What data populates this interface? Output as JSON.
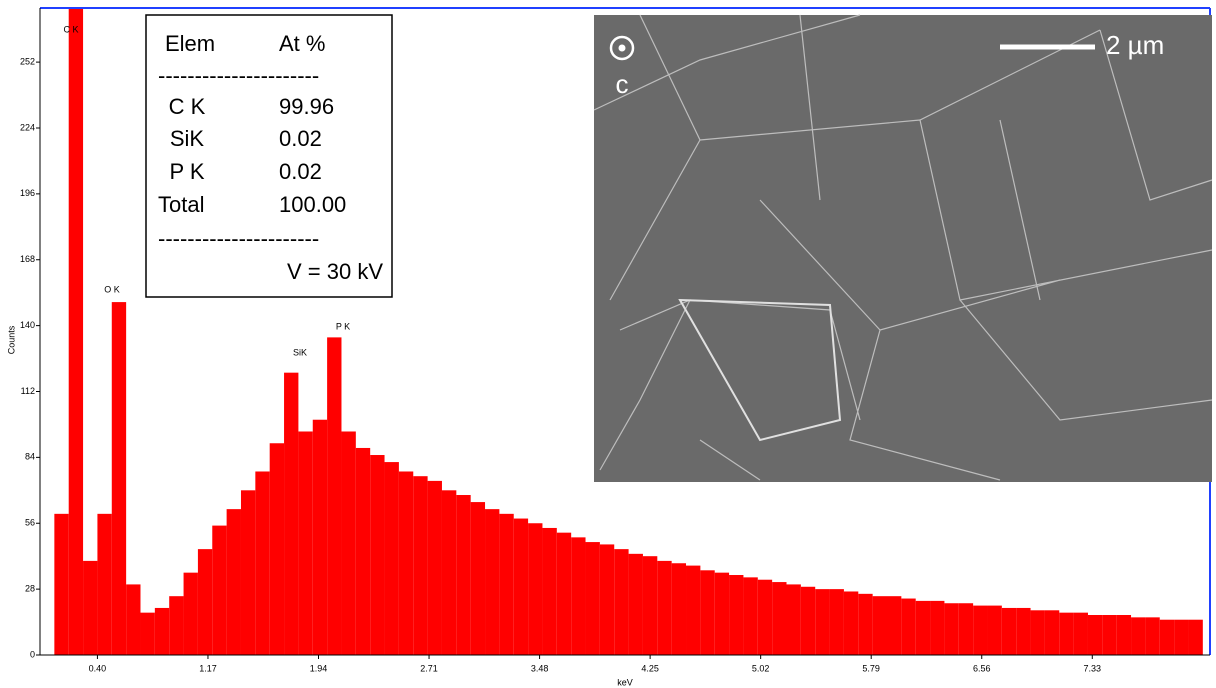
{
  "chart_data": {
    "type": "histogram",
    "x_label": "keV",
    "y_label": "Counts",
    "color": "#ff0000",
    "bins": [
      0.1,
      0.2,
      0.3,
      0.4,
      0.5,
      0.6,
      0.7,
      0.8,
      0.9,
      1.0,
      1.1,
      1.2,
      1.3,
      1.4,
      1.5,
      1.6,
      1.7,
      1.8,
      1.9,
      2.0,
      2.1,
      2.2,
      2.3,
      2.4,
      2.5,
      2.6,
      2.7,
      2.8,
      2.9,
      3.0,
      3.1,
      3.2,
      3.3,
      3.4,
      3.5,
      3.6,
      3.7,
      3.8,
      3.9,
      4.0,
      4.1,
      4.2,
      4.3,
      4.4,
      4.5,
      4.6,
      4.7,
      4.8,
      4.9,
      5.0,
      5.1,
      5.2,
      5.3,
      5.4,
      5.5,
      5.6,
      5.7,
      5.8,
      5.9,
      6.0,
      6.1,
      6.2,
      6.3,
      6.4,
      6.5,
      6.6,
      6.7,
      6.8,
      6.9,
      7.0,
      7.1,
      7.2,
      7.3,
      7.4,
      7.5,
      7.6,
      7.7,
      7.8,
      7.9,
      8.0,
      8.1
    ],
    "values": [
      60,
      275,
      40,
      60,
      150,
      30,
      18,
      20,
      25,
      35,
      45,
      55,
      62,
      70,
      78,
      90,
      120,
      95,
      100,
      135,
      95,
      88,
      85,
      82,
      78,
      76,
      74,
      70,
      68,
      65,
      62,
      60,
      58,
      56,
      54,
      52,
      50,
      48,
      47,
      45,
      43,
      42,
      40,
      39,
      38,
      36,
      35,
      34,
      33,
      32,
      31,
      30,
      29,
      28,
      28,
      27,
      26,
      25,
      25,
      24,
      23,
      23,
      22,
      22,
      21,
      21,
      20,
      20,
      19,
      19,
      18,
      18,
      17,
      17,
      17,
      16,
      16,
      15,
      15,
      15
    ],
    "xlim": [
      0,
      8.15
    ],
    "xticks": [
      {
        "value": 0.4,
        "label": "0.40"
      },
      1.17,
      1.94,
      2.71,
      3.48,
      4.25,
      5.02,
      5.79,
      6.56,
      7.33
    ],
    "ylim": [
      0,
      275
    ],
    "yticks": [
      0,
      28,
      56,
      84,
      112,
      140,
      168,
      196,
      224,
      252
    ],
    "annotations": [
      "C K",
      "O K",
      "SiK",
      "P K"
    ]
  },
  "inset_table": {
    "header": [
      "Elem",
      "At %"
    ],
    "separator": "----------------------",
    "rows": [
      [
        "C K",
        "99.96"
      ],
      [
        "SiK",
        "0.02"
      ],
      [
        "P K",
        "0.02"
      ],
      [
        "Total",
        "100.00"
      ]
    ],
    "footer": "V = 30 kV"
  },
  "inset_image": {
    "axis_label": "c",
    "scale_bar": "2 µm"
  }
}
